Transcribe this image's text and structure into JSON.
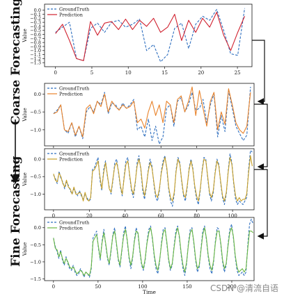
{
  "side_labels": {
    "coarse": "Coarse Forecasting",
    "fine": "Fine Forecasting"
  },
  "watermark": "CSDN @清流自语",
  "chart_data": [
    {
      "type": "line",
      "ylabel": "Value",
      "xlabel": "",
      "xlim": [
        -1.5,
        27
      ],
      "ylim": [
        -1.4,
        0.15
      ],
      "xticks": [
        0,
        5,
        10,
        15,
        20,
        25
      ],
      "yticks": [
        0.0,
        -0.1,
        -0.2,
        -0.3,
        -0.4,
        -0.5,
        -0.6,
        -0.7,
        -0.8,
        -0.9,
        -1.0,
        -1.1,
        -1.2,
        -1.3
      ],
      "ytick_labels": [
        "0.0",
        "−0.1",
        "−0.2",
        "−0.3",
        "−0.4",
        "−0.5",
        "−0.6",
        "−0.7",
        "−0.8",
        "−0.9",
        "−1.0",
        "−1.1",
        "−1.2",
        "−1.3"
      ],
      "legend": [
        "GroundTruth",
        "Prediction"
      ],
      "legend_position": "top-left",
      "series": [
        {
          "name": "GroundTruth",
          "color": "#2f6fbf",
          "style": "dashed",
          "values": [
            -0.55,
            -0.42,
            -0.3,
            -1.2,
            -1.25,
            -0.45,
            -0.32,
            -0.55,
            -0.3,
            -0.25,
            -0.42,
            -0.35,
            -0.22,
            -1.0,
            -0.85,
            -1.28,
            -1.1,
            -0.45,
            -0.32,
            -0.95,
            -0.35,
            -0.15,
            -0.25,
            0.02,
            -0.5,
            -1.08,
            -1.12,
            0.05
          ]
        },
        {
          "name": "Prediction",
          "color": "#d0202e",
          "style": "solid",
          "values": [
            -0.58,
            -0.35,
            -0.75,
            -1.2,
            -1.25,
            -0.28,
            -0.62,
            -0.32,
            -0.28,
            -0.48,
            -0.22,
            -0.48,
            -0.25,
            -0.4,
            -0.2,
            -0.55,
            -0.42,
            -0.1,
            -0.75,
            -0.25,
            -0.55,
            -0.2,
            -0.42,
            -0.05,
            -0.62,
            -1.0,
            -0.55,
            -0.15
          ]
        }
      ]
    },
    {
      "type": "line",
      "ylabel": "Value",
      "xlabel": "",
      "xlim": [
        -2.5,
        56
      ],
      "ylim": [
        -1.45,
        0.3
      ],
      "xticks": [
        0,
        10,
        20,
        30,
        40,
        50
      ],
      "yticks": [
        0.0,
        -0.5,
        -1.0
      ],
      "ytick_labels": [
        "0.0",
        "−0.5",
        "−1.0"
      ],
      "legend": [
        "GroundTruth",
        "Prediction"
      ],
      "legend_position": "top-left",
      "series": [
        {
          "name": "GroundTruth",
          "color": "#2f6fbf",
          "style": "dashed",
          "values": [
            -0.55,
            -0.45,
            -0.3,
            -1.0,
            -1.1,
            -0.8,
            -1.2,
            -0.9,
            -1.25,
            -0.5,
            -0.35,
            -0.5,
            -0.2,
            -0.3,
            0.05,
            -0.55,
            -0.25,
            -0.3,
            -0.45,
            -0.25,
            -0.4,
            -0.3,
            -0.15,
            -1.0,
            -0.9,
            -1.2,
            -0.7,
            -1.3,
            -0.9,
            -1.4,
            -1.2,
            -0.4,
            -0.3,
            -0.9,
            -0.2,
            -0.1,
            -0.5,
            -0.3,
            0.05,
            -0.45,
            -0.4,
            -0.15,
            -0.8,
            -0.3,
            0.0,
            -1.2,
            -0.6,
            -1.05,
            0.1,
            -0.4,
            -0.9,
            -1.1,
            -1.3,
            -1.15,
            0.2
          ]
        },
        {
          "name": "Prediction",
          "color": "#e8822a",
          "style": "solid",
          "values": [
            -0.55,
            -0.5,
            -0.3,
            -1.0,
            -1.05,
            -0.8,
            -1.15,
            -0.9,
            -1.2,
            -0.4,
            -0.3,
            -0.55,
            -0.2,
            -0.35,
            0.0,
            -0.5,
            -0.2,
            -0.35,
            -0.45,
            -0.3,
            -0.4,
            -0.35,
            -0.2,
            -0.8,
            -0.7,
            -0.95,
            -0.5,
            -0.2,
            -0.6,
            -0.3,
            -0.8,
            -0.2,
            -0.3,
            -0.8,
            -0.15,
            -0.05,
            -0.5,
            -0.2,
            0.2,
            -0.6,
            0.1,
            -0.4,
            -0.9,
            -0.2,
            0.05,
            -1.0,
            -0.5,
            -0.85,
            0.15,
            -0.3,
            -0.8,
            -1.0,
            -1.1,
            -0.9,
            0.05
          ]
        }
      ]
    },
    {
      "type": "line",
      "ylabel": "Value",
      "xlabel": "",
      "xlim": [
        -5,
        112
      ],
      "ylim": [
        -1.45,
        0.3
      ],
      "xticks": [
        0,
        20,
        40,
        60,
        80,
        100
      ],
      "yticks": [
        0.0,
        -0.5,
        -1.0
      ],
      "ytick_labels": [
        "0.0",
        "−0.5",
        "−1.0"
      ],
      "legend": [
        "GroundTruth",
        "Prediction"
      ],
      "legend_position": "top-left",
      "series": [
        {
          "name": "GroundTruth",
          "color": "#2f6fbf",
          "style": "dashed",
          "values": [
            -0.45,
            -0.55,
            -0.7,
            -0.35,
            -0.55,
            -0.65,
            -0.85,
            -0.65,
            -0.75,
            -0.9,
            -1.0,
            -0.85,
            -0.95,
            -1.05,
            -0.9,
            -1.05,
            -1.15,
            -1.0,
            -1.1,
            -1.2,
            -1.15,
            -0.3,
            -0.25,
            -0.1,
            0.05,
            -0.6,
            -0.9,
            -0.3,
            -0.05,
            -0.5,
            -0.8,
            -1.0,
            -0.6,
            -0.1,
            0.0,
            -0.4,
            -0.8,
            -1.05,
            -0.5,
            -0.05,
            0.05,
            -0.5,
            -0.9,
            -1.1,
            -0.7,
            -0.1,
            0.1,
            -0.3,
            -0.9,
            -1.15,
            -0.8,
            -0.3,
            0.0,
            -0.2,
            -0.7,
            -1.1,
            -1.2,
            -0.9,
            -0.35,
            -0.05,
            0.1,
            -0.3,
            -0.85,
            -1.2,
            -1.35,
            -1.0,
            -0.3,
            0.05,
            -0.1,
            -0.65,
            -1.05,
            -1.2,
            -0.8,
            -0.25,
            0.0,
            -0.25,
            -0.8,
            -1.15,
            -1.3,
            -0.9,
            -0.3,
            0.05,
            0.0,
            -0.55,
            -1.0,
            -1.2,
            -0.95,
            -0.35,
            0.0,
            -0.15,
            -0.7,
            -1.1,
            -1.3,
            -1.0,
            -0.35,
            0.15,
            -0.1,
            -0.7,
            -1.15,
            -1.3,
            -1.2,
            -1.25,
            -1.3,
            -1.2,
            -1.1,
            -0.3,
            0.25,
            0.2
          ]
        },
        {
          "name": "Prediction",
          "color": "#c8a028",
          "style": "solid",
          "values": [
            -0.42,
            -0.6,
            -0.65,
            -0.4,
            -0.5,
            -0.7,
            -0.8,
            -0.6,
            -0.8,
            -0.85,
            -1.0,
            -0.8,
            -1.0,
            -1.0,
            -0.95,
            -1.0,
            -1.2,
            -0.95,
            -1.15,
            -1.2,
            -1.1,
            -0.35,
            -0.3,
            -0.2,
            -0.05,
            -0.5,
            -0.85,
            -0.4,
            -0.1,
            -0.45,
            -0.85,
            -0.95,
            -0.55,
            -0.2,
            -0.1,
            -0.35,
            -0.75,
            -1.0,
            -0.55,
            -0.15,
            -0.05,
            -0.45,
            -0.85,
            -1.0,
            -0.65,
            -0.2,
            0.0,
            -0.25,
            -0.8,
            -1.05,
            -0.75,
            -0.35,
            -0.1,
            -0.25,
            -0.65,
            -1.0,
            -1.1,
            -0.85,
            -0.4,
            -0.15,
            0.05,
            -0.25,
            -0.8,
            -1.1,
            -1.2,
            -0.95,
            -0.35,
            0.0,
            -0.15,
            -0.6,
            -1.0,
            -1.1,
            -0.75,
            -0.3,
            -0.05,
            -0.3,
            -0.75,
            -1.05,
            -1.2,
            -0.85,
            -0.35,
            0.0,
            -0.05,
            -0.5,
            -0.95,
            -1.1,
            -0.9,
            -0.4,
            -0.05,
            -0.2,
            -0.65,
            -1.05,
            -1.2,
            -0.95,
            -0.4,
            0.05,
            -0.15,
            -0.65,
            -1.05,
            -1.2,
            -1.1,
            -1.2,
            -1.15,
            -1.15,
            -1.0,
            -0.4,
            0.1,
            -0.2
          ]
        }
      ]
    },
    {
      "type": "line",
      "ylabel": "Value",
      "xlabel": "Time",
      "xlim": [
        -10,
        225
      ],
      "ylim": [
        -1.55,
        0.3
      ],
      "xticks": [
        0,
        50,
        100,
        150,
        200
      ],
      "yticks": [
        0.0,
        -0.5,
        -1.0,
        -1.5
      ],
      "ytick_labels": [
        "0.0",
        "−0.5",
        "−1.0",
        "−1.5"
      ],
      "legend": [
        "GroundTruth",
        "Prediction"
      ],
      "legend_position": "top-left",
      "series": [
        {
          "name": "GroundTruth",
          "color": "#2f6fbf",
          "style": "dashed",
          "values": [
            -0.3,
            -0.55,
            -0.7,
            -0.9,
            -0.65,
            -0.95,
            -1.1,
            -0.85,
            -1.05,
            -1.2,
            -1.25,
            -1.1,
            -1.3,
            -1.4,
            -1.35,
            -1.2,
            -1.3,
            -1.45,
            -1.3,
            -1.35,
            -1.45,
            -1.2,
            -0.3,
            -0.2,
            -0.1,
            -0.6,
            -0.95,
            -0.4,
            -0.05,
            -0.5,
            -0.9,
            -1.1,
            -0.7,
            -0.2,
            0.0,
            -0.5,
            -0.95,
            -1.15,
            -0.7,
            -0.15,
            0.05,
            -0.4,
            -0.9,
            -1.2,
            -0.9,
            -0.35,
            0.0,
            -0.2,
            -0.7,
            -1.1,
            -1.25,
            -0.95,
            -0.4,
            -0.05,
            0.05,
            -0.35,
            -0.85,
            -1.2,
            -1.35,
            -1.0,
            -0.45,
            -0.05,
            0.0,
            -0.45,
            -0.95,
            -1.25,
            -1.1,
            -0.55,
            -0.1,
            0.05,
            -0.3,
            -0.8,
            -1.2,
            -1.4,
            -1.05,
            -0.45,
            -0.05,
            0.0,
            -0.45,
            -0.95,
            -1.3,
            -1.15,
            -0.6,
            -0.1,
            0.05,
            -0.35,
            -0.85,
            -1.2,
            -1.35,
            -1.0,
            -0.4,
            0.0,
            -0.05,
            -0.5,
            -1.0,
            -1.3,
            -1.1,
            -0.5,
            -0.05,
            0.1,
            -0.3,
            -0.85,
            -1.25,
            -1.4,
            -1.35,
            -1.3,
            -1.4,
            -1.3,
            -0.5,
            0.1,
            0.25,
            0.1
          ]
        },
        {
          "name": "Prediction",
          "color": "#6ab843",
          "style": "solid",
          "values": [
            -0.3,
            -0.6,
            -0.65,
            -0.85,
            -0.7,
            -0.9,
            -1.05,
            -0.9,
            -1.0,
            -1.15,
            -1.2,
            -1.15,
            -1.25,
            -1.35,
            -1.3,
            -1.25,
            -1.3,
            -1.4,
            -1.3,
            -1.35,
            -1.4,
            -1.15,
            -0.4,
            -0.3,
            -0.2,
            -0.55,
            -0.9,
            -0.45,
            -0.15,
            -0.45,
            -0.85,
            -1.05,
            -0.65,
            -0.25,
            -0.1,
            -0.45,
            -0.9,
            -1.1,
            -0.65,
            -0.25,
            -0.05,
            -0.35,
            -0.85,
            -1.1,
            -0.85,
            -0.4,
            -0.1,
            -0.15,
            -0.65,
            -1.05,
            -1.2,
            -0.9,
            -0.45,
            -0.15,
            0.0,
            -0.3,
            -0.8,
            -1.1,
            -1.25,
            -0.95,
            -0.5,
            -0.15,
            -0.05,
            -0.4,
            -0.9,
            -1.2,
            -1.05,
            -0.6,
            -0.2,
            0.0,
            -0.25,
            -0.75,
            -1.1,
            -1.3,
            -1.0,
            -0.5,
            -0.15,
            -0.05,
            -0.4,
            -0.9,
            -1.2,
            -1.1,
            -0.65,
            -0.2,
            0.0,
            -0.3,
            -0.8,
            -1.1,
            -1.25,
            -0.95,
            -0.45,
            -0.1,
            -0.1,
            -0.45,
            -0.95,
            -1.2,
            -1.05,
            -0.55,
            -0.15,
            0.0,
            -0.25,
            -0.8,
            -1.15,
            -1.3,
            -1.25,
            -1.2,
            -1.3,
            -1.2,
            -0.6,
            -0.1,
            -0.1,
            -0.15
          ]
        }
      ]
    }
  ]
}
